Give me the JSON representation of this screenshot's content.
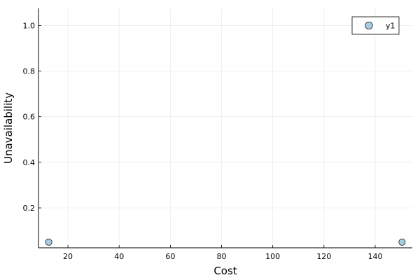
{
  "chart_data": {
    "type": "scatter",
    "xlabel": "Cost",
    "ylabel": "Unavailability",
    "xlim": [
      8.5,
      154.5
    ],
    "ylim": [
      0.025,
      1.075
    ],
    "xticks": [
      20,
      40,
      60,
      80,
      100,
      120,
      140
    ],
    "yticks": [
      0.2,
      0.4,
      0.6,
      0.8,
      1.0
    ],
    "xtick_labels": [
      "20",
      "40",
      "60",
      "80",
      "100",
      "120",
      "140"
    ],
    "ytick_labels": [
      "0.2",
      "0.4",
      "0.6",
      "0.8",
      "1.0"
    ],
    "grid": true,
    "legend_position": "top-right",
    "series": [
      {
        "name": "y1",
        "color": "#a6cee3",
        "x": [
          12.5,
          150.5
        ],
        "y": [
          0.05,
          0.05
        ]
      }
    ]
  }
}
